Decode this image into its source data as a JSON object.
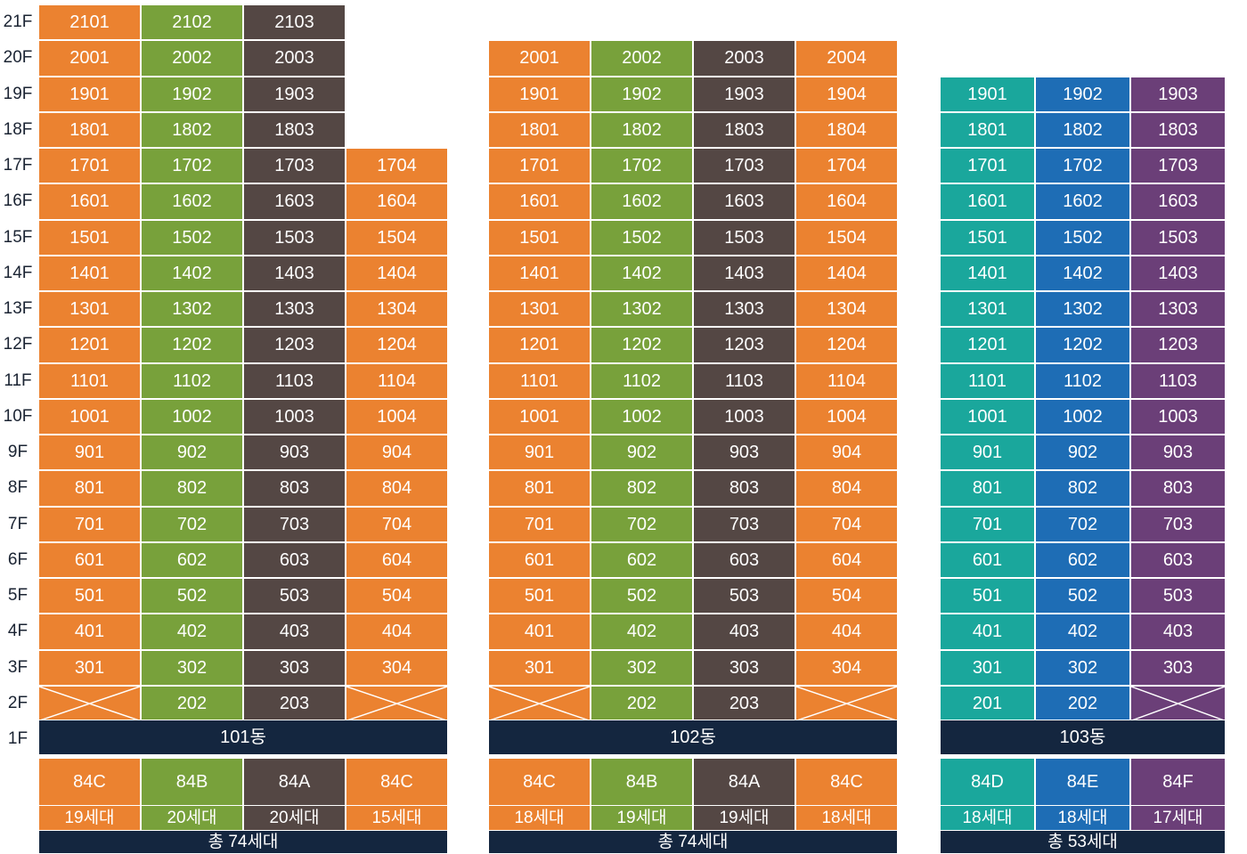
{
  "floors": [
    "21F",
    "20F",
    "19F",
    "18F",
    "17F",
    "16F",
    "15F",
    "14F",
    "13F",
    "12F",
    "11F",
    "10F",
    "9F",
    "8F",
    "7F",
    "6F",
    "5F",
    "4F",
    "3F",
    "2F",
    "1F"
  ],
  "colors": {
    "orange": "#eb8230",
    "green": "#78a13b",
    "charcoal": "#544744",
    "teal": "#1aa79c",
    "blue": "#1e6db5",
    "purple": "#6b3f78",
    "navy": "#14263f"
  },
  "buildings": [
    {
      "name": "101동",
      "total": "총 74세대",
      "columns": [
        {
          "line": "01",
          "type": "84C",
          "count": "19세대",
          "color": "orange",
          "top_floor": 21
        },
        {
          "line": "02",
          "type": "84B",
          "count": "20세대",
          "color": "green",
          "top_floor": 21
        },
        {
          "line": "03",
          "type": "84A",
          "count": "20세대",
          "color": "charcoal",
          "top_floor": 21
        },
        {
          "line": "04",
          "type": "84C",
          "count": "15세대",
          "color": "orange",
          "top_floor": 17
        }
      ],
      "empty_units": [
        "201",
        "204"
      ]
    },
    {
      "name": "102동",
      "total": "총 74세대",
      "columns": [
        {
          "line": "01",
          "type": "84C",
          "count": "18세대",
          "color": "orange",
          "top_floor": 20
        },
        {
          "line": "02",
          "type": "84B",
          "count": "19세대",
          "color": "green",
          "top_floor": 20
        },
        {
          "line": "03",
          "type": "84A",
          "count": "19세대",
          "color": "charcoal",
          "top_floor": 20
        },
        {
          "line": "04",
          "type": "84C",
          "count": "18세대",
          "color": "orange",
          "top_floor": 20
        }
      ],
      "empty_units": [
        "201",
        "204"
      ]
    },
    {
      "name": "103동",
      "total": "총 53세대",
      "columns": [
        {
          "line": "01",
          "type": "84D",
          "count": "18세대",
          "color": "teal",
          "top_floor": 19
        },
        {
          "line": "02",
          "type": "84E",
          "count": "18세대",
          "color": "blue",
          "top_floor": 19
        },
        {
          "line": "03",
          "type": "84F",
          "count": "17세대",
          "color": "purple",
          "top_floor": 19
        }
      ],
      "empty_units": [
        "203"
      ]
    }
  ]
}
